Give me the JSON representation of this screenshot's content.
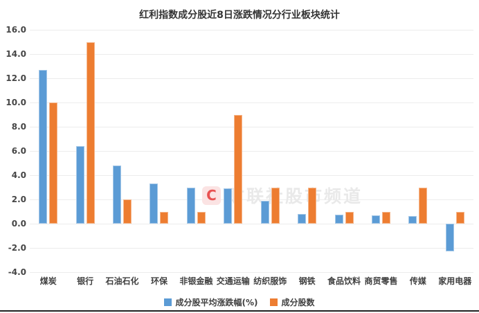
{
  "title": "红利指数成分股近8日涨跌情况分行业板块统计",
  "watermark": {
    "logo": "C",
    "text": "财联社股市频道"
  },
  "colors": {
    "series1": "#5B9BD5",
    "series2": "#ED7D31",
    "gridline": "#ececec"
  },
  "chart_data": {
    "type": "bar",
    "title": "红利指数成分股近8日涨跌情况分行业板块统计",
    "categories": [
      "煤炭",
      "银行",
      "石油石化",
      "环保",
      "非银金融",
      "交通运输",
      "纺织服饰",
      "钢铁",
      "食品饮料",
      "商贸零售",
      "传媒",
      "家用电器"
    ],
    "series": [
      {
        "name": "成分股平均涨跌幅(%)",
        "color": "#5B9BD5",
        "values": [
          12.7,
          6.4,
          4.8,
          3.3,
          3.0,
          2.9,
          1.9,
          0.8,
          0.75,
          0.7,
          0.65,
          -2.3
        ]
      },
      {
        "name": "成分股数",
        "color": "#ED7D31",
        "values": [
          10,
          15,
          2,
          1,
          1,
          9,
          3,
          3,
          1,
          1,
          3,
          1
        ]
      }
    ],
    "xlabel": "",
    "ylabel": "",
    "ylim": [
      -4,
      16
    ],
    "ytick_step": 2,
    "ytick_labels": [
      "16.0",
      "14.0",
      "12.0",
      "10.0",
      "8.0",
      "6.0",
      "4.0",
      "2.0",
      "0.0",
      "-2.0",
      "-4.0"
    ],
    "grid": true,
    "legend_position": "bottom"
  }
}
